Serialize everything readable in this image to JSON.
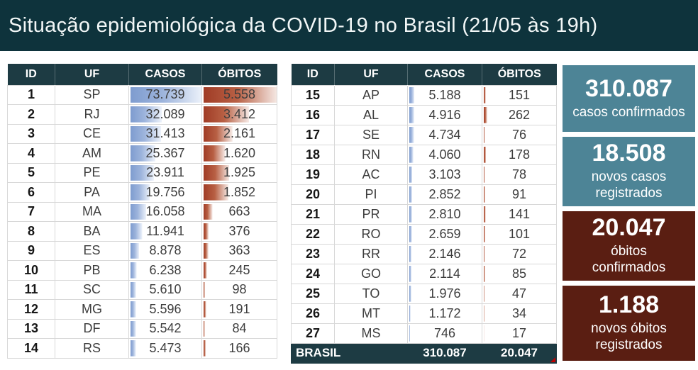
{
  "title": "Situação epidemiológica da COVID-19 no Brasil (21/05 às 19h)",
  "colors": {
    "title_bar": "#0e333c",
    "table_header": "#1d3b43",
    "card_teal": "#4d8496",
    "card_red": "#5a1e12",
    "bar_casos": "#7e9ccf",
    "bar_obitos": "#a03c26"
  },
  "chart_data": {
    "type": "table",
    "title": "Situação epidemiológica da COVID-19 no Brasil (21/05 às 19h)",
    "columns": [
      "ID",
      "UF",
      "CASOS",
      "ÓBITOS"
    ],
    "databar_max": {
      "casos": 73739,
      "obitos": 5558
    },
    "rows": [
      {
        "id": 1,
        "uf": "SP",
        "casos": 73739,
        "obitos": 5558
      },
      {
        "id": 2,
        "uf": "RJ",
        "casos": 32089,
        "obitos": 3412
      },
      {
        "id": 3,
        "uf": "CE",
        "casos": 31413,
        "obitos": 2161
      },
      {
        "id": 4,
        "uf": "AM",
        "casos": 25367,
        "obitos": 1620
      },
      {
        "id": 5,
        "uf": "PE",
        "casos": 23911,
        "obitos": 1925
      },
      {
        "id": 6,
        "uf": "PA",
        "casos": 19756,
        "obitos": 1852
      },
      {
        "id": 7,
        "uf": "MA",
        "casos": 16058,
        "obitos": 663
      },
      {
        "id": 8,
        "uf": "BA",
        "casos": 11941,
        "obitos": 376
      },
      {
        "id": 9,
        "uf": "ES",
        "casos": 8878,
        "obitos": 363
      },
      {
        "id": 10,
        "uf": "PB",
        "casos": 6238,
        "obitos": 245
      },
      {
        "id": 11,
        "uf": "SC",
        "casos": 5610,
        "obitos": 98
      },
      {
        "id": 12,
        "uf": "MG",
        "casos": 5596,
        "obitos": 191
      },
      {
        "id": 13,
        "uf": "DF",
        "casos": 5542,
        "obitos": 84
      },
      {
        "id": 14,
        "uf": "RS",
        "casos": 5473,
        "obitos": 166
      },
      {
        "id": 15,
        "uf": "AP",
        "casos": 5188,
        "obitos": 151
      },
      {
        "id": 16,
        "uf": "AL",
        "casos": 4916,
        "obitos": 262
      },
      {
        "id": 17,
        "uf": "SE",
        "casos": 4734,
        "obitos": 76
      },
      {
        "id": 18,
        "uf": "RN",
        "casos": 4060,
        "obitos": 178
      },
      {
        "id": 19,
        "uf": "AC",
        "casos": 3103,
        "obitos": 78
      },
      {
        "id": 20,
        "uf": "PI",
        "casos": 2852,
        "obitos": 91
      },
      {
        "id": 21,
        "uf": "PR",
        "casos": 2810,
        "obitos": 141
      },
      {
        "id": 22,
        "uf": "RO",
        "casos": 2659,
        "obitos": 101
      },
      {
        "id": 23,
        "uf": "RR",
        "casos": 2146,
        "obitos": 72
      },
      {
        "id": 24,
        "uf": "GO",
        "casos": 2114,
        "obitos": 85
      },
      {
        "id": 25,
        "uf": "TO",
        "casos": 1976,
        "obitos": 47
      },
      {
        "id": 26,
        "uf": "MT",
        "casos": 1172,
        "obitos": 34
      },
      {
        "id": 27,
        "uf": "MS",
        "casos": 746,
        "obitos": 17
      }
    ],
    "total": {
      "label": "BRASIL",
      "casos": 310087,
      "obitos": 20047
    },
    "table_split": 14
  },
  "cards": [
    {
      "value": "310.087",
      "label": "casos confirmados",
      "type": "teal"
    },
    {
      "value": "18.508",
      "label": "novos casos\nregistrados",
      "type": "teal"
    },
    {
      "value": "20.047",
      "label": "óbitos\nconfirmados",
      "type": "red"
    },
    {
      "value": "1.188",
      "label": "novos óbitos\nregistrados",
      "type": "red"
    }
  ]
}
